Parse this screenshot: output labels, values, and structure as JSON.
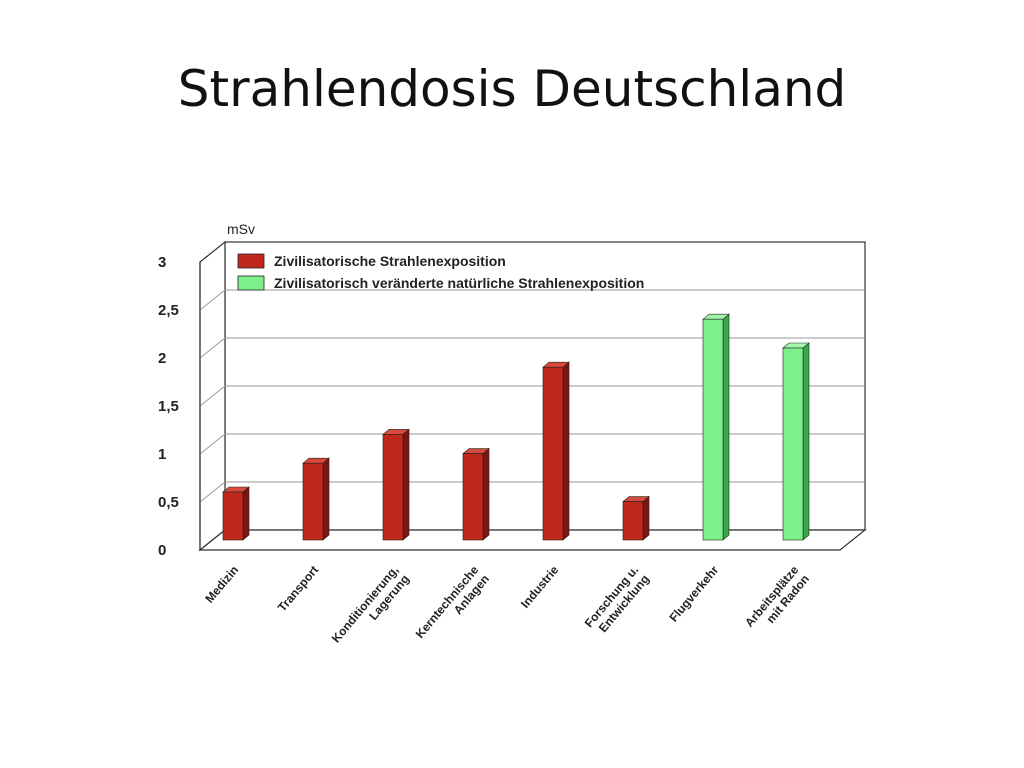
{
  "slide": {
    "title": "Strahlendosis Deutschland"
  },
  "chart_data": {
    "type": "bar",
    "unit": "mSv",
    "ylim": [
      0,
      3
    ],
    "yticks": [
      "0",
      "0,5",
      "1",
      "1,5",
      "2",
      "2,5",
      "3"
    ],
    "ytick_values": [
      0,
      0.5,
      1,
      1.5,
      2,
      2.5,
      3
    ],
    "grid": true,
    "legend_position": "top-left",
    "legend": [
      {
        "label": "Zivilisatorische Strahlenexposition",
        "color": "#c0281c"
      },
      {
        "label": "Zivilisatorisch veränderte natürliche Strahlenexposition",
        "color": "#7ef08a"
      }
    ],
    "categories": [
      [
        "Medizin"
      ],
      [
        "Transport"
      ],
      [
        "Konditionierung,",
        "Lagerung"
      ],
      [
        "Kerntechnische",
        "Anlagen"
      ],
      [
        "Industrie"
      ],
      [
        "Forschung u.",
        "Entwicklung"
      ],
      [
        "Flugverkehr"
      ],
      [
        "Arbeitsplätze",
        "mit Radon"
      ]
    ],
    "values": [
      0.5,
      0.8,
      1.1,
      0.9,
      1.8,
      0.4,
      2.3,
      2.0
    ],
    "series_index": [
      0,
      0,
      0,
      0,
      0,
      0,
      1,
      1
    ],
    "colors": {
      "red_front": "#c0281c",
      "red_side": "#7a150f",
      "red_top": "#d94a3c",
      "green_front": "#7ef08a",
      "green_side": "#3aa84a",
      "green_top": "#a6f7ae",
      "grid": "#9a9a9a",
      "axis": "#333333"
    }
  }
}
